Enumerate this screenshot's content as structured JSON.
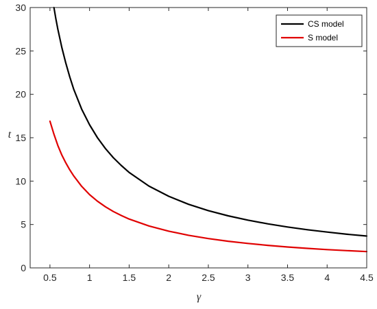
{
  "chart_data": {
    "type": "line",
    "xlabel": "γ",
    "ylabel": "t",
    "xlim": [
      0.25,
      4.5
    ],
    "ylim": [
      0,
      30
    ],
    "x_ticks": [
      0.5,
      1,
      1.5,
      2,
      2.5,
      3,
      3.5,
      4,
      4.5
    ],
    "x_tick_labels": [
      "0.5",
      "1",
      "1.5",
      "2",
      "2.5",
      "3",
      "3.5",
      "4",
      "4.5"
    ],
    "y_ticks": [
      0,
      5,
      10,
      15,
      20,
      25,
      30
    ],
    "y_tick_labels": [
      "0",
      "5",
      "10",
      "15",
      "20",
      "25",
      "30"
    ],
    "grid": false,
    "legend_position": "top-right",
    "series": [
      {
        "name": "CS model",
        "color": "#000000",
        "x": [
          0.55,
          0.575,
          0.6,
          0.65,
          0.7,
          0.75,
          0.8,
          0.9,
          1,
          1.1,
          1.2,
          1.3,
          1.4,
          1.5,
          1.75,
          2,
          2.25,
          2.5,
          2.75,
          3,
          3.25,
          3.5,
          3.75,
          4,
          4.25,
          4.5
        ],
        "y": [
          30.0,
          28.7,
          27.5,
          25.4,
          23.6,
          22.0,
          20.6,
          18.3,
          16.5,
          15.0,
          13.75,
          12.7,
          11.8,
          11.0,
          9.43,
          8.25,
          7.33,
          6.6,
          6.0,
          5.5,
          5.08,
          4.71,
          4.4,
          4.13,
          3.88,
          3.67
        ]
      },
      {
        "name": "S model",
        "color": "#e00000",
        "x": [
          0.5,
          0.55,
          0.6,
          0.65,
          0.7,
          0.75,
          0.8,
          0.9,
          1,
          1.1,
          1.2,
          1.3,
          1.4,
          1.5,
          1.75,
          2,
          2.25,
          2.5,
          2.75,
          3,
          3.25,
          3.5,
          3.75,
          4,
          4.25,
          4.5
        ],
        "y": [
          16.9,
          15.4,
          14.1,
          13.0,
          12.1,
          11.3,
          10.6,
          9.4,
          8.45,
          7.68,
          7.04,
          6.5,
          6.04,
          5.63,
          4.83,
          4.23,
          3.76,
          3.38,
          3.07,
          2.82,
          2.6,
          2.41,
          2.25,
          2.11,
          1.99,
          1.88
        ]
      }
    ]
  }
}
